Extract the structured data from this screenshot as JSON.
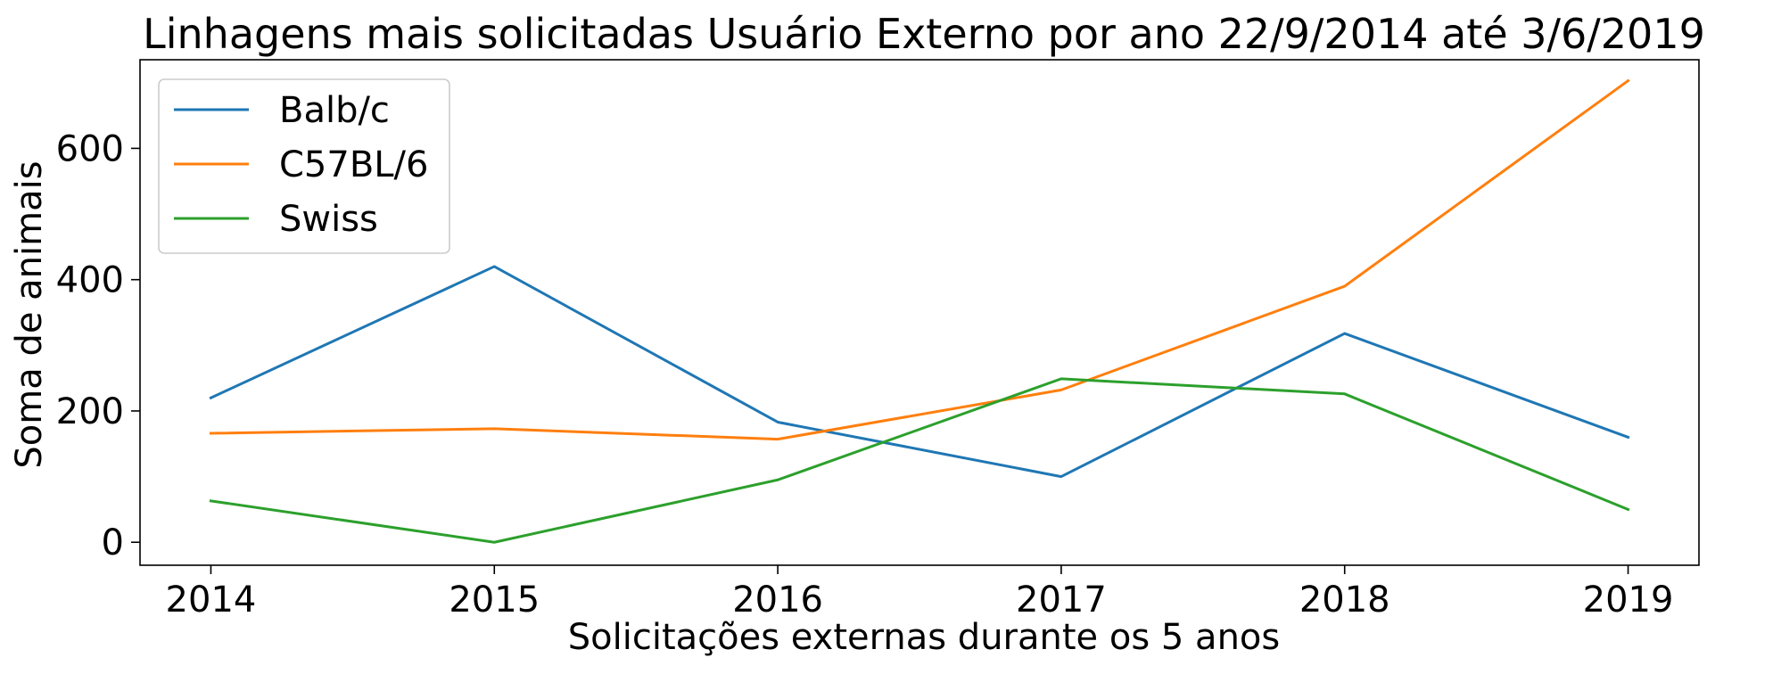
{
  "chart_data": {
    "type": "line",
    "title": "Linhagens mais solicitadas Usuário Externo por ano 22/9/2014 até 3/6/2019",
    "xlabel": "Solicitações externas durante os 5 anos",
    "ylabel": "Soma de animais",
    "x": [
      2014,
      2015,
      2016,
      2017,
      2018,
      2019
    ],
    "x_tick_labels": [
      "2014",
      "2015",
      "2016",
      "2017",
      "2018",
      "2019"
    ],
    "xlim": [
      2013.75,
      2019.25
    ],
    "ylim": [
      -35,
      735
    ],
    "y_ticks": [
      0,
      200,
      400,
      600
    ],
    "y_tick_labels": [
      "0",
      "200",
      "400",
      "600"
    ],
    "grid": false,
    "legend_position": "top-left",
    "series": [
      {
        "name": "Balb/c",
        "color": "#1f77b4",
        "values": [
          220,
          420,
          183,
          100,
          318,
          160
        ]
      },
      {
        "name": "C57BL/6",
        "color": "#ff7f0e",
        "values": [
          166,
          173,
          157,
          232,
          390,
          703
        ]
      },
      {
        "name": "Swiss",
        "color": "#2ca02c",
        "values": [
          63,
          0,
          95,
          249,
          226,
          50
        ]
      }
    ]
  }
}
